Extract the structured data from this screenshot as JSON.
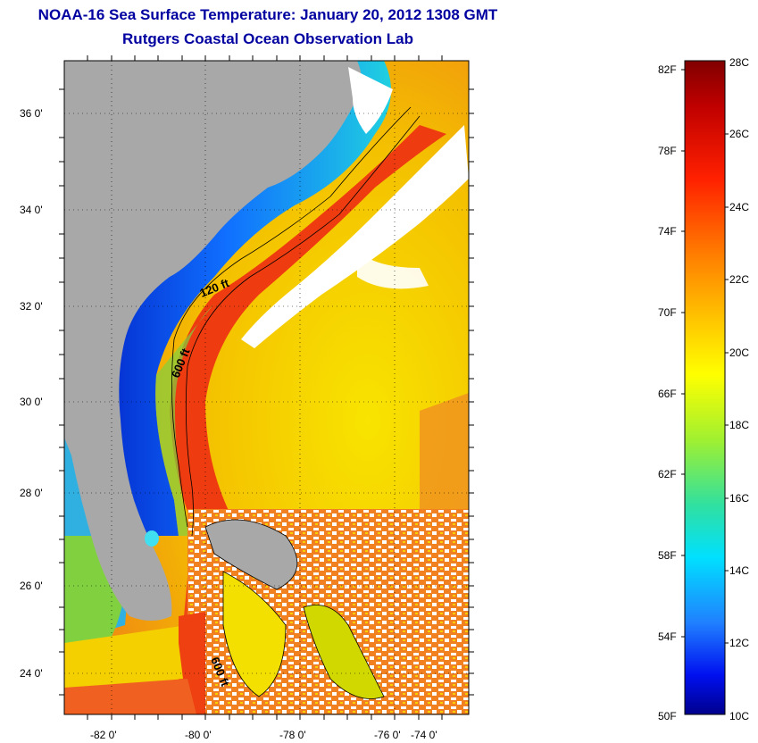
{
  "header": {
    "title": "NOAA-16 Sea Surface Temperature:  January 20, 2012 1308 GMT",
    "subtitle": "Rutgers Coastal Ocean Observation Lab"
  },
  "map": {
    "lat_ticks": [
      "24 0'",
      "26 0'",
      "28 0'",
      "30 0'",
      "32 0'",
      "34 0'",
      "36 0'"
    ],
    "lon_ticks": [
      "-82 0'",
      "-80 0'",
      "-78 0'",
      "-76 0'",
      "-74 0'"
    ],
    "contour_labels": [
      "120 ft",
      "600 ft",
      "600 ft"
    ],
    "colors": {
      "land": "#a8a8a8",
      "cloud": "#ffffff",
      "gulf_stream": "#ee4010",
      "offshore": "#f0d000",
      "shelf": "#1050e0"
    }
  },
  "colorbar": {
    "fahrenheit_labels": [
      "82F",
      "78F",
      "74F",
      "70F",
      "66F",
      "62F",
      "58F",
      "54F",
      "50F"
    ],
    "celsius_labels": [
      "28C",
      "26C",
      "24C",
      "22C",
      "20C",
      "18C",
      "16C",
      "14C",
      "12C",
      "10C"
    ]
  }
}
